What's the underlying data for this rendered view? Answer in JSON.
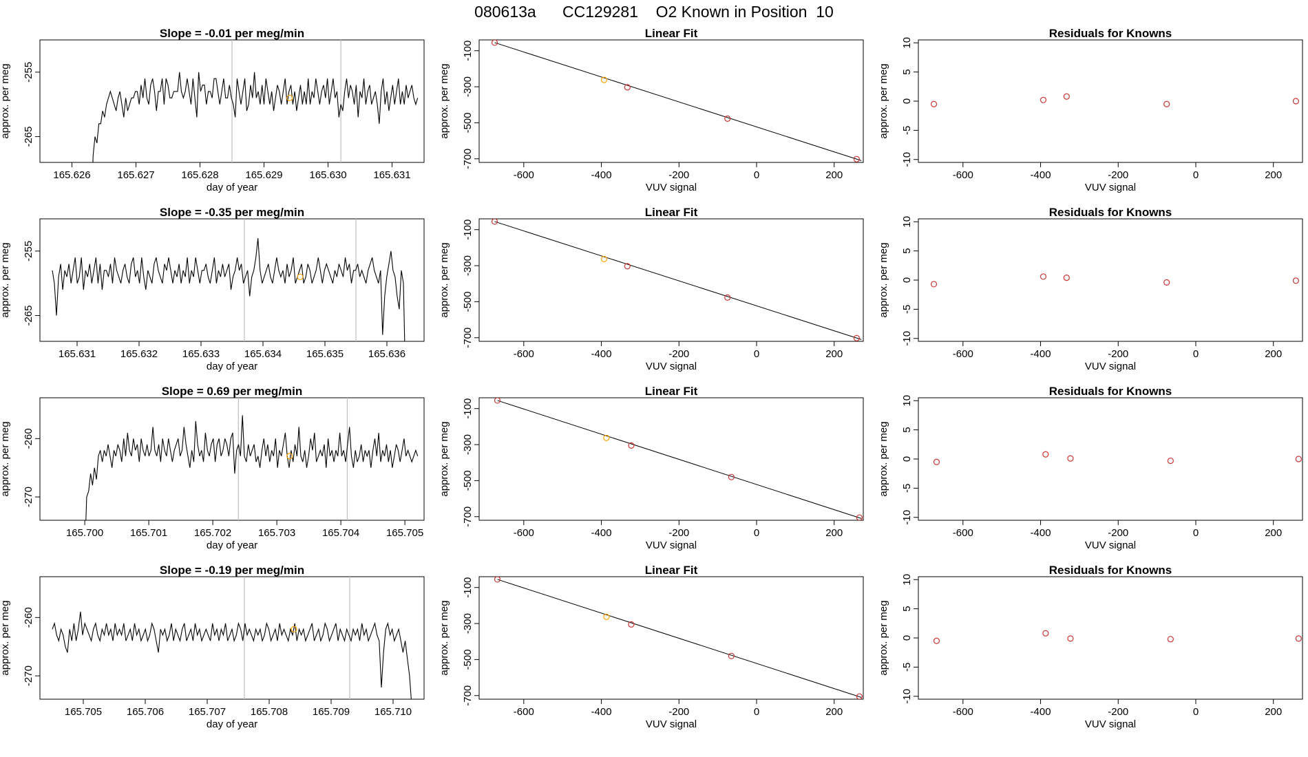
{
  "page_title": "080613a      CC129281    O2 Known in Position  10",
  "colors": {
    "line": "#000000",
    "marker": "#cd3333",
    "highlight": "#ffa500",
    "vline": "#bebebe"
  },
  "chart_data": [
    {
      "type": "line",
      "title": "Slope =  -0.01  per meg/min",
      "xlabel": "day of year",
      "ylabel": "approx. per meg",
      "xlim": [
        165.6255,
        165.6315
      ],
      "ylim": [
        -269,
        -250
      ],
      "xticks": [
        "165.626",
        "165.627",
        "165.628",
        "165.629",
        "165.630",
        "165.631"
      ],
      "yticks": [
        "-255",
        "-265"
      ],
      "x_start": 165.6263,
      "x_end": 165.6314,
      "y_values": [
        -280,
        -268,
        -265,
        -266,
        -263,
        -263,
        -261,
        -262,
        -260,
        -259,
        -258,
        -259,
        -260,
        -261,
        -259,
        -258,
        -260,
        -262,
        -259,
        -261,
        -260,
        -259,
        -259,
        -258,
        -258,
        -260,
        -257,
        -259,
        -256,
        -259,
        -260,
        -257,
        -256,
        -258,
        -261,
        -258,
        -258,
        -256,
        -260,
        -256,
        -257,
        -259,
        -259,
        -258,
        -258,
        -258,
        -255,
        -258,
        -259,
        -258,
        -256,
        -258,
        -260,
        -256,
        -259,
        -262,
        -255,
        -258,
        -257,
        -257,
        -260,
        -258,
        -258,
        -259,
        -256,
        -256,
        -258,
        -260,
        -258,
        -256,
        -259,
        -259,
        -257,
        -259,
        -260,
        -262,
        -256,
        -258,
        -260,
        -258,
        -256,
        -261,
        -260,
        -257,
        -259,
        -255,
        -259,
        -258,
        -260,
        -257,
        -260,
        -256,
        -258,
        -260,
        -258,
        -261,
        -259,
        -257,
        -258,
        -260,
        -258,
        -256,
        -260,
        -258,
        -257,
        -260,
        -258,
        -261,
        -259,
        -257,
        -260,
        -258,
        -260,
        -256,
        -260,
        -258,
        -259,
        -256,
        -258,
        -260,
        -258,
        -257,
        -259,
        -256,
        -260,
        -258,
        -256,
        -259,
        -258,
        -262,
        -260,
        -261,
        -258,
        -256,
        -259,
        -257,
        -258,
        -260,
        -257,
        -262,
        -258,
        -259,
        -256,
        -260,
        -258,
        -257,
        -260,
        -259,
        -258,
        -260,
        -263,
        -258,
        -256,
        -260,
        -258,
        -261,
        -259,
        -257,
        -260,
        -258,
        -256,
        -260,
        -258,
        -260,
        -257,
        -259,
        -258,
        -257,
        -259,
        -260,
        -259
      ],
      "vlines": [
        165.6285,
        165.6302
      ],
      "highlight_point": [
        165.6294,
        -259
      ]
    },
    {
      "type": "scatter",
      "title": "Linear Fit",
      "xlabel": "VUV signal",
      "ylabel": "approx. per meg",
      "xlim": [
        -715,
        275
      ],
      "ylim": [
        -720,
        -40
      ],
      "xticks": [
        -600,
        -400,
        -200,
        0,
        200
      ],
      "yticks": [
        -100,
        -300,
        -500,
        -700
      ],
      "points": [
        [
          -675,
          -55
        ],
        [
          -393,
          -262
        ],
        [
          -333,
          -303
        ],
        [
          -75,
          -477
        ],
        [
          258,
          -702
        ]
      ],
      "highlight_index": 1,
      "fit_line": [
        [
          -675,
          -55
        ],
        [
          270,
          -710
        ]
      ]
    },
    {
      "type": "scatter",
      "title": "Residuals for Knowns",
      "xlabel": "VUV signal",
      "ylabel": "approx. per meg",
      "xlim": [
        -715,
        275
      ],
      "ylim": [
        -10.5,
        10.5
      ],
      "xticks": [
        -600,
        -400,
        -200,
        0,
        200
      ],
      "yticks": [
        10,
        5,
        0,
        -5,
        -10
      ],
      "points": [
        [
          -675,
          -0.5
        ],
        [
          -393,
          0.2
        ],
        [
          -333,
          0.8
        ],
        [
          -75,
          -0.5
        ],
        [
          258,
          0
        ]
      ]
    },
    {
      "type": "line",
      "title": "Slope =  -0.35  per meg/min",
      "xlabel": "day of year",
      "ylabel": "approx. per meg",
      "xlim": [
        165.6304,
        165.6366
      ],
      "ylim": [
        -269,
        -250
      ],
      "xticks": [
        "165.631",
        "165.632",
        "165.633",
        "165.634",
        "165.635",
        "165.636"
      ],
      "yticks": [
        "-255",
        "-265"
      ],
      "x_start": 165.6306,
      "x_end": 165.6363,
      "y_values": [
        -258,
        -260,
        -265,
        -259,
        -257,
        -261,
        -258,
        -259,
        -257,
        -260,
        -258,
        -256,
        -260,
        -259,
        -256,
        -261,
        -258,
        -259,
        -257,
        -260,
        -258,
        -256,
        -260,
        -257,
        -261,
        -258,
        -258,
        -259,
        -257,
        -260,
        -256,
        -258,
        -259,
        -260,
        -258,
        -257,
        -259,
        -260,
        -257,
        -256,
        -259,
        -258,
        -260,
        -256,
        -259,
        -261,
        -258,
        -259,
        -260,
        -257,
        -256,
        -258,
        -259,
        -260,
        -257,
        -258,
        -256,
        -258,
        -260,
        -258,
        -259,
        -257,
        -260,
        -258,
        -259,
        -256,
        -260,
        -258,
        -259,
        -256,
        -258,
        -260,
        -258,
        -258,
        -257,
        -259,
        -260,
        -258,
        -256,
        -260,
        -258,
        -259,
        -257,
        -259,
        -258,
        -257,
        -261,
        -259,
        -258,
        -256,
        -258,
        -257,
        -260,
        -259,
        -258,
        -262,
        -259,
        -258,
        -256,
        -253,
        -258,
        -260,
        -259,
        -258,
        -257,
        -259,
        -260,
        -258,
        -256,
        -258,
        -259,
        -258,
        -260,
        -257,
        -259,
        -258,
        -256,
        -260,
        -259,
        -258,
        -257,
        -260,
        -259,
        -257,
        -258,
        -260,
        -259,
        -258,
        -256,
        -258,
        -260,
        -258,
        -257,
        -258,
        -259,
        -260,
        -258,
        -259,
        -257,
        -258,
        -259,
        -256,
        -258,
        -257,
        -260,
        -258,
        -258,
        -257,
        -259,
        -258,
        -259,
        -260,
        -258,
        -257,
        -256,
        -258,
        -259,
        -260,
        -258,
        -268,
        -262,
        -259,
        -257,
        -255,
        -258,
        -259,
        -262,
        -264,
        -258,
        -260,
        -275
      ],
      "vlines": [
        165.6337,
        165.6355
      ],
      "highlight_point": [
        165.6346,
        -259
      ]
    },
    {
      "type": "scatter",
      "title": "Linear Fit",
      "xlabel": "VUV signal",
      "ylabel": "approx. per meg",
      "xlim": [
        -715,
        275
      ],
      "ylim": [
        -720,
        -40
      ],
      "xticks": [
        -600,
        -400,
        -200,
        0,
        200
      ],
      "yticks": [
        -100,
        -300,
        -500,
        -700
      ],
      "points": [
        [
          -675,
          -55
        ],
        [
          -393,
          -263
        ],
        [
          -333,
          -303
        ],
        [
          -75,
          -477
        ],
        [
          258,
          -702
        ]
      ],
      "highlight_index": 1,
      "fit_line": [
        [
          -675,
          -55
        ],
        [
          270,
          -710
        ]
      ]
    },
    {
      "type": "scatter",
      "title": "Residuals for Knowns",
      "xlabel": "VUV signal",
      "ylabel": "approx. per meg",
      "xlim": [
        -715,
        275
      ],
      "ylim": [
        -10.5,
        10.5
      ],
      "xticks": [
        -600,
        -400,
        -200,
        0,
        200
      ],
      "yticks": [
        10,
        5,
        0,
        -5,
        -10
      ],
      "points": [
        [
          -675,
          -0.7
        ],
        [
          -393,
          0.6
        ],
        [
          -333,
          0.4
        ],
        [
          -75,
          -0.4
        ],
        [
          258,
          -0.1
        ]
      ]
    },
    {
      "type": "line",
      "title": "Slope =  0.69  per meg/min",
      "xlabel": "day of year",
      "ylabel": "approx. per meg",
      "xlim": [
        165.6993,
        165.7053
      ],
      "ylim": [
        -274,
        -253
      ],
      "xticks": [
        "165.700",
        "165.701",
        "165.702",
        "165.703",
        "165.704",
        "165.705"
      ],
      "yticks": [
        "-260",
        "-270"
      ],
      "x_start": 165.7,
      "x_end": 165.7052,
      "y_values": [
        -280,
        -270,
        -269,
        -266,
        -268,
        -265,
        -267,
        -263,
        -262,
        -264,
        -262,
        -263,
        -261,
        -263,
        -265,
        -262,
        -263,
        -261,
        -262,
        -264,
        -260,
        -263,
        -259,
        -262,
        -263,
        -260,
        -262,
        -261,
        -264,
        -260,
        -262,
        -263,
        -261,
        -263,
        -262,
        -258,
        -262,
        -263,
        -261,
        -264,
        -260,
        -262,
        -263,
        -260,
        -262,
        -264,
        -262,
        -261,
        -260,
        -263,
        -262,
        -258,
        -261,
        -263,
        -265,
        -262,
        -264,
        -257,
        -261,
        -263,
        -262,
        -264,
        -259,
        -262,
        -263,
        -261,
        -260,
        -264,
        -261,
        -260,
        -263,
        -262,
        -260,
        -261,
        -263,
        -260,
        -259,
        -266,
        -262,
        -261,
        -263,
        -256,
        -263,
        -264,
        -261,
        -263,
        -262,
        -261,
        -264,
        -263,
        -265,
        -262,
        -260,
        -263,
        -261,
        -264,
        -262,
        -263,
        -260,
        -265,
        -262,
        -263,
        -261,
        -259,
        -263,
        -265,
        -262,
        -264,
        -261,
        -263,
        -258,
        -263,
        -264,
        -262,
        -265,
        -263,
        -260,
        -262,
        -259,
        -264,
        -263,
        -262,
        -263,
        -261,
        -265,
        -260,
        -263,
        -262,
        -264,
        -262,
        -263,
        -259,
        -263,
        -262,
        -264,
        -261,
        -258,
        -263,
        -265,
        -262,
        -264,
        -263,
        -261,
        -264,
        -262,
        -263,
        -262,
        -265,
        -262,
        -260,
        -263,
        -259,
        -264,
        -262,
        -263,
        -261,
        -264,
        -262,
        -265,
        -263,
        -261,
        -262,
        -264,
        -262,
        -260,
        -263,
        -262,
        -263,
        -264,
        -263,
        -262,
        -263
      ],
      "vlines": [
        165.7024,
        165.7041
      ],
      "highlight_point": [
        165.7032,
        -263
      ]
    },
    {
      "type": "scatter",
      "title": "Linear Fit",
      "xlabel": "VUV signal",
      "ylabel": "approx. per meg",
      "xlim": [
        -715,
        275
      ],
      "ylim": [
        -720,
        -40
      ],
      "xticks": [
        -600,
        -400,
        -200,
        0,
        200
      ],
      "yticks": [
        -100,
        -300,
        -500,
        -700
      ],
      "points": [
        [
          -668,
          -55
        ],
        [
          -387,
          -263
        ],
        [
          -323,
          -305
        ],
        [
          -65,
          -480
        ],
        [
          265,
          -705
        ]
      ],
      "highlight_index": 1,
      "fit_line": [
        [
          -668,
          -55
        ],
        [
          270,
          -710
        ]
      ]
    },
    {
      "type": "scatter",
      "title": "Residuals for Knowns",
      "xlabel": "VUV signal",
      "ylabel": "approx. per meg",
      "xlim": [
        -715,
        275
      ],
      "ylim": [
        -10.5,
        10.5
      ],
      "xticks": [
        -600,
        -400,
        -200,
        0,
        200
      ],
      "yticks": [
        10,
        5,
        0,
        -5,
        -10
      ],
      "points": [
        [
          -668,
          -0.5
        ],
        [
          -387,
          0.8
        ],
        [
          -323,
          0.1
        ],
        [
          -65,
          -0.3
        ],
        [
          265,
          0
        ]
      ]
    },
    {
      "type": "line",
      "title": "Slope =  -0.19  per meg/min",
      "xlabel": "day of year",
      "ylabel": "approx. per meg",
      "xlim": [
        165.7043,
        165.7105
      ],
      "ylim": [
        -274,
        -253
      ],
      "xticks": [
        "165.705",
        "165.706",
        "165.707",
        "165.708",
        "165.709",
        "165.710"
      ],
      "yticks": [
        "-260",
        "-270"
      ],
      "x_start": 165.7045,
      "x_end": 165.7103,
      "y_values": [
        -262,
        -261,
        -263,
        -264,
        -262,
        -263,
        -265,
        -266,
        -262,
        -264,
        -261,
        -264,
        -262,
        -259,
        -263,
        -261,
        -262,
        -263,
        -264,
        -262,
        -261,
        -263,
        -264,
        -262,
        -263,
        -261,
        -263,
        -262,
        -264,
        -261,
        -263,
        -262,
        -263,
        -261,
        -264,
        -263,
        -262,
        -264,
        -261,
        -263,
        -262,
        -264,
        -263,
        -262,
        -264,
        -263,
        -261,
        -262,
        -264,
        -266,
        -262,
        -263,
        -262,
        -264,
        -263,
        -261,
        -264,
        -262,
        -263,
        -264,
        -262,
        -261,
        -264,
        -263,
        -262,
        -264,
        -261,
        -263,
        -262,
        -264,
        -263,
        -262,
        -263,
        -264,
        -261,
        -263,
        -262,
        -264,
        -262,
        -263,
        -261,
        -264,
        -263,
        -262,
        -264,
        -263,
        -261,
        -262,
        -264,
        -261,
        -263,
        -262,
        -263,
        -264,
        -262,
        -263,
        -262,
        -264,
        -263,
        -261,
        -262,
        -264,
        -263,
        -262,
        -264,
        -261,
        -263,
        -262,
        -263,
        -264,
        -262,
        -263,
        -261,
        -264,
        -262,
        -263,
        -262,
        -264,
        -263,
        -262,
        -261,
        -264,
        -263,
        -262,
        -264,
        -263,
        -261,
        -262,
        -264,
        -263,
        -262,
        -261,
        -264,
        -262,
        -263,
        -264,
        -262,
        -263,
        -264,
        -262,
        -263,
        -262,
        -264,
        -261,
        -263,
        -262,
        -264,
        -263,
        -262,
        -261,
        -263,
        -264,
        -272,
        -266,
        -262,
        -261,
        -263,
        -262,
        -264,
        -263,
        -262,
        -264,
        -266,
        -264,
        -267,
        -270,
        -275
      ],
      "vlines": [
        165.7076,
        165.7093
      ],
      "highlight_point": [
        165.7084,
        -262
      ]
    },
    {
      "type": "scatter",
      "title": "Linear Fit",
      "xlabel": "VUV signal",
      "ylabel": "approx. per meg",
      "xlim": [
        -715,
        275
      ],
      "ylim": [
        -720,
        -40
      ],
      "xticks": [
        -600,
        -400,
        -200,
        0,
        200
      ],
      "yticks": [
        -100,
        -300,
        -500,
        -700
      ],
      "points": [
        [
          -668,
          -55
        ],
        [
          -387,
          -263
        ],
        [
          -323,
          -305
        ],
        [
          -65,
          -480
        ],
        [
          265,
          -705
        ]
      ],
      "highlight_index": 1,
      "fit_line": [
        [
          -668,
          -55
        ],
        [
          270,
          -710
        ]
      ]
    },
    {
      "type": "scatter",
      "title": "Residuals for Knowns",
      "xlabel": "VUV signal",
      "ylabel": "approx. per meg",
      "xlim": [
        -715,
        275
      ],
      "ylim": [
        -10.5,
        10.5
      ],
      "xticks": [
        -600,
        -400,
        -200,
        0,
        200
      ],
      "yticks": [
        10,
        5,
        0,
        -5,
        -10
      ],
      "points": [
        [
          -668,
          -0.5
        ],
        [
          -387,
          0.8
        ],
        [
          -323,
          -0.1
        ],
        [
          -65,
          -0.2
        ],
        [
          265,
          -0.1
        ]
      ]
    }
  ]
}
